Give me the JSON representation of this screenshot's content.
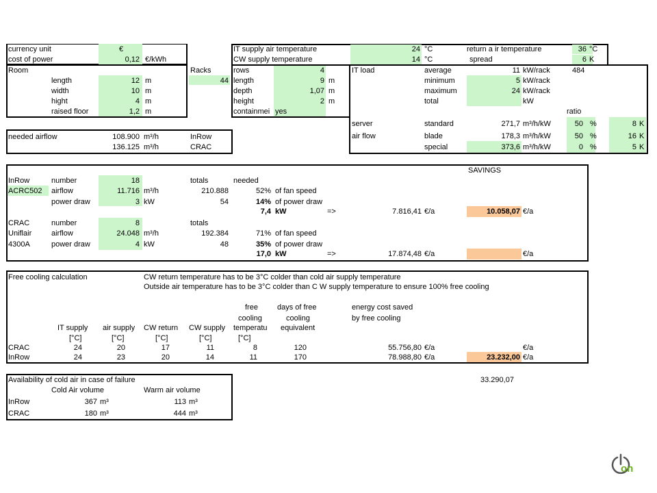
{
  "top": {
    "currency_label": "currency unit",
    "currency_value": "€",
    "power_label": "cost of power",
    "power_value": "0,12",
    "power_unit": "€/kWh",
    "it_supply_label": "IT supply air temperature",
    "it_supply_value": "24",
    "it_supply_unit": "°C",
    "return_label": "return a ir temperature",
    "return_value": "36",
    "return_unit": "°C",
    "cw_supply_label": "CW supply temperature",
    "cw_supply_value": "14",
    "cw_supply_unit": "°C",
    "spread_label": "spread",
    "spread_value": "6",
    "spread_unit": "K"
  },
  "room": {
    "title": "Room",
    "rows": [
      {
        "label": "length",
        "value": "12",
        "unit": "m"
      },
      {
        "label": "width",
        "value": "10",
        "unit": "m"
      },
      {
        "label": "hight",
        "value": "4",
        "unit": "m"
      },
      {
        "label": "raised floor",
        "value": "1,2",
        "unit": "m"
      }
    ]
  },
  "racks": {
    "title": "Racks",
    "count": "44",
    "rows": [
      {
        "label": "rows",
        "value": "4",
        "unit": ""
      },
      {
        "label": "length",
        "value": "9",
        "unit": "m"
      },
      {
        "label": "depth",
        "value": "1,07",
        "unit": "m"
      },
      {
        "label": "height",
        "value": "2",
        "unit": "m"
      },
      {
        "label": "containmei",
        "value": "yes",
        "unit": ""
      }
    ]
  },
  "itload": {
    "title": "IT load",
    "rows": [
      {
        "label": "average",
        "value": "11",
        "unit": "kW/rack",
        "extra": "484"
      },
      {
        "label": "minimum",
        "value": "5",
        "unit": "kW/rack"
      },
      {
        "label": "maximum",
        "value": "24",
        "unit": "kW/rack"
      },
      {
        "label": "total",
        "value": "",
        "unit": "kW"
      }
    ],
    "ratio_label": "ratio",
    "server_label": "server",
    "airflow_label": "air flow",
    "servers": [
      {
        "type": "standard",
        "value": "271,7",
        "unit": "m³/h/kW",
        "ratio": "50",
        "pct": "%",
        "k": "8",
        "ku": "K"
      },
      {
        "type": "blade",
        "value": "178,3",
        "unit": "m³/h/kW",
        "ratio": "50",
        "pct": "%",
        "k": "16",
        "ku": "K"
      },
      {
        "type": "special",
        "value": "373,6",
        "unit": "m³/h/kW",
        "ratio": "0",
        "pct": "%",
        "k": "5",
        "ku": "K"
      }
    ]
  },
  "airflow": {
    "label": "needed airflow",
    "v1": "108.900",
    "v2": "136.125",
    "unit": "m³/h",
    "t1": "InRow",
    "t2": "CRAC"
  },
  "cooling": {
    "savings_label": "SAVINGS",
    "inrow": {
      "name1": "InRow",
      "name2": "ACRC502",
      "number_label": "number",
      "number": "18",
      "airflow_label": "airflow",
      "airflow": "11.716",
      "airflow_unit": "m³/h",
      "power_label": "power draw",
      "power": "3",
      "power_unit": "kW",
      "totals_label": "totals",
      "needed_label": "needed",
      "total_airflow": "210.888",
      "total_power": "54",
      "fan_pct": "52%",
      "fan_text": "of fan speed",
      "power_pct": "14%",
      "power_text": "of power draw",
      "kw": "7,4",
      "kw_unit": "kW",
      "arrow": "=>",
      "cost": "7.816,41",
      "cost_unit": "€/a",
      "saving": "10.058,07",
      "saving_unit": "€/a"
    },
    "crac": {
      "name1": "CRAC",
      "name2": "Uniflair",
      "name3": "4300A",
      "number_label": "number",
      "number": "8",
      "airflow_label": "airflow",
      "airflow": "24.048",
      "airflow_unit": "m³/h",
      "power_label": "power draw",
      "power": "4",
      "power_unit": "kW",
      "totals_label": "totals",
      "total_airflow": "192.384",
      "total_power": "48",
      "fan_pct": "71%",
      "fan_text": "of fan speed",
      "power_pct": "35%",
      "power_text": "of power draw",
      "kw": "17,0",
      "kw_unit": "kW",
      "arrow": "=>",
      "cost": "17.874,48",
      "cost_unit": "€/a",
      "saving_unit": "€/a"
    }
  },
  "freecooling": {
    "title": "Free cooling calculation",
    "note1": "CW return temperature has to be 3°C colder than cold air supply temperature",
    "note2": "Outside air temperature has to be 3°C colder than C W supply temperature to ensure 100% free cooling",
    "headers": {
      "it_supply": "IT supply",
      "air_supply": "air supply",
      "cw_return": "CW return",
      "cw_supply": "CW supply",
      "free1": "free",
      "free2": "cooling",
      "free3": "temperatu",
      "days1": "days of free",
      "days2": "cooling",
      "days3": "equivalent",
      "energy1": "energy cost saved",
      "energy2": "by free cooling",
      "unit": "[°C]"
    },
    "rows": [
      {
        "name": "CRAC",
        "it": "24",
        "air": "20",
        "cwr": "17",
        "cws": "11",
        "free": "8",
        "days": "120",
        "cost": "55.756,80",
        "cost_unit": "€/a",
        "total_unit": "€/a"
      },
      {
        "name": "InRow",
        "it": "24",
        "air": "23",
        "cwr": "20",
        "cws": "14",
        "free": "11",
        "days": "170",
        "cost": "78.988,80",
        "cost_unit": "€/a",
        "total": "23.232,00",
        "total_unit": "€/a"
      }
    ]
  },
  "availability": {
    "title": "Availability of cold air in case of failure",
    "cold_label": "Cold Air volume",
    "warm_label": "Warm air volume",
    "rows": [
      {
        "name": "InRow",
        "cold": "367",
        "warm": "113"
      },
      {
        "name": "CRAC",
        "cold": "180",
        "warm": "444"
      }
    ],
    "unit": "m³",
    "grand_total": "33.290,07"
  },
  "logo": {
    "text": "on",
    "icon": "power-icon"
  }
}
